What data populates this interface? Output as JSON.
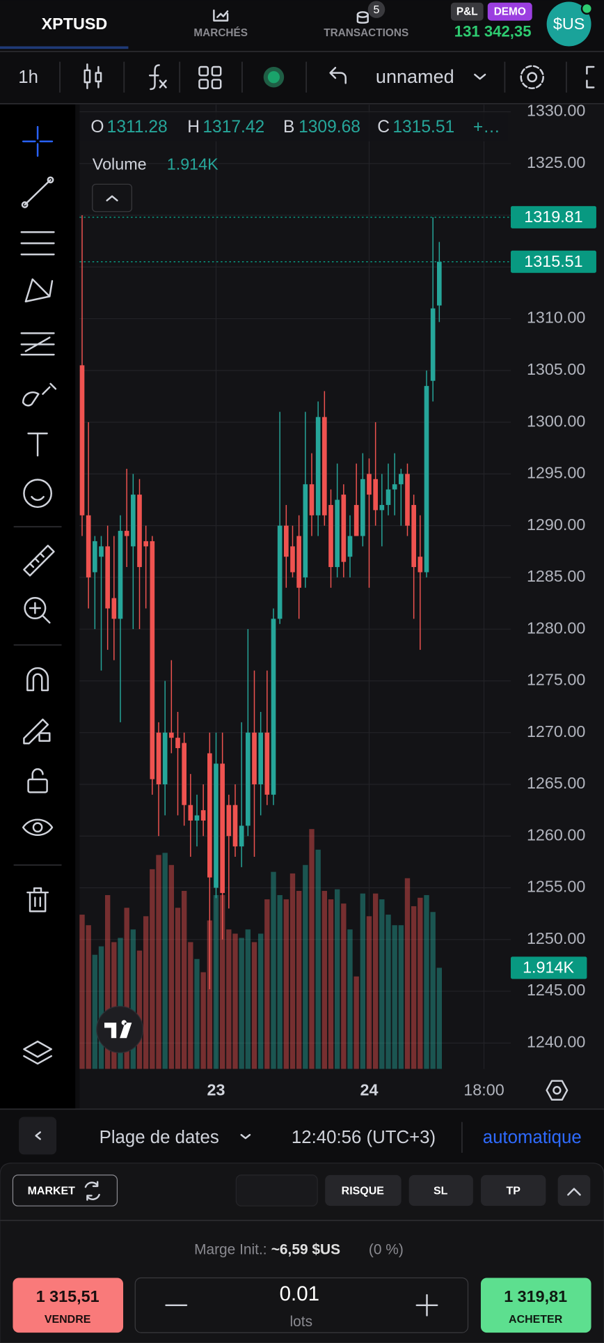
{
  "header": {
    "symbol": "XPTUSD",
    "tabs": [
      {
        "label": "MARCHÉS"
      },
      {
        "label": "TRANSACTIONS",
        "badge": "5"
      }
    ],
    "pnl_label": "P&L",
    "demo_label": "DEMO",
    "balance": "131 342,35",
    "currency": "$US"
  },
  "toolbar": {
    "interval": "1h",
    "layout": "unnamed"
  },
  "chart_data": {
    "type": "candlestick",
    "legend_labels": {
      "open": "O",
      "high": "H",
      "low": "B",
      "close": "C"
    },
    "legend_more": "+…",
    "volume_title": "Volume",
    "volume_label": "1.914K",
    "open": [
      1305.5,
      1291,
      1285.5,
      1287,
      1288,
      1283,
      1281,
      1289.5,
      1288,
      1293,
      1288.5,
      1288.5,
      1270,
      1265,
      1270,
      1269.5,
      1269,
      1263,
      1261.5,
      1262.5,
      1268,
      1255,
      1267,
      1263,
      1263,
      1259,
      1261,
      1270,
      1265,
      1270,
      1264,
      1281,
      1290,
      1288,
      1289,
      1285,
      1294,
      1291,
      1300.5,
      1292,
      1286,
      1293,
      1287,
      1292,
      1289,
      1295,
      1294.5,
      1291.5,
      1292,
      1293.5,
      1294,
      1295,
      1292,
      1287,
      1285.5,
      1304,
      1311.28
    ],
    "high": [
      1320,
      1300,
      1289,
      1289,
      1290,
      1289,
      1291,
      1295.5,
      1295,
      1294.5,
      1290,
      1289,
      1271,
      1275,
      1277,
      1272,
      1270,
      1266,
      1264,
      1265,
      1270,
      1270,
      1270,
      1264,
      1265,
      1271,
      1280,
      1276,
      1272,
      1276,
      1282,
      1301,
      1292,
      1290,
      1291,
      1301,
      1297,
      1302,
      1303,
      1293.5,
      1296,
      1294,
      1291,
      1296,
      1297,
      1296.5,
      1300,
      1295,
      1296,
      1297,
      1295.5,
      1296,
      1293,
      1291,
      1305,
      1319.81,
      1317.42
    ],
    "low": [
      1289,
      1282,
      1280,
      1276,
      1278,
      1277,
      1271,
      1286,
      1280,
      1280,
      1282,
      1264,
      1260,
      1262,
      1268,
      1262,
      1261,
      1258,
      1259,
      1260,
      1245.2,
      1254,
      1250,
      1253,
      1258,
      1257,
      1260,
      1258,
      1262,
      1263,
      1263,
      1280.5,
      1284,
      1285,
      1281,
      1284,
      1289,
      1289,
      1290,
      1284,
      1285,
      1285,
      1285,
      1289,
      1288,
      1284,
      1290,
      1288,
      1291,
      1291,
      1290,
      1289,
      1281,
      1278,
      1285,
      1302,
      1309.68
    ],
    "close": [
      1291,
      1285,
      1288.5,
      1288,
      1282,
      1281,
      1289.5,
      1289,
      1293,
      1286,
      1288,
      1265.5,
      1265,
      1270,
      1269.5,
      1268.5,
      1263,
      1261.5,
      1262,
      1261.5,
      1256,
      1267,
      1254.5,
      1260,
      1259,
      1261,
      1270,
      1265,
      1270,
      1264,
      1281,
      1290,
      1287,
      1285.5,
      1284,
      1294,
      1291,
      1300.5,
      1291,
      1286,
      1292.5,
      1286.5,
      1289,
      1289,
      1294.5,
      1293,
      1291.5,
      1292,
      1293.5,
      1294,
      1295,
      1290,
      1286,
      1285.5,
      1303.5,
      1311,
      1315.51
    ],
    "volume": [
      2920,
      2720,
      2160,
      2320,
      3290,
      2400,
      2480,
      3050,
      2640,
      2240,
      2890,
      3780,
      4050,
      4090,
      3860,
      3050,
      3370,
      2400,
      2080,
      1830,
      2810,
      3290,
      3290,
      2640,
      2560,
      2480,
      2640,
      2400,
      2560,
      3210,
      3730,
      3290,
      3210,
      3700,
      3370,
      3860,
      4540,
      4150,
      3370,
      3210,
      3400,
      3130,
      2640,
      1750,
      3320,
      2890,
      3320,
      3210,
      2920,
      2720,
      2720,
      3610,
      3080,
      3240,
      3290,
      2970,
      1914
    ],
    "ask_price": 1319.81,
    "up_color": "#26a69a",
    "down_color": "#ef5350",
    "price_line_color": "#089981",
    "ylim": [
      1237.5,
      1330.7
    ],
    "yticks": [
      {
        "value": 1330,
        "label": "1330.00"
      },
      {
        "value": 1325,
        "label": "1325.00"
      },
      {
        "value": 1320,
        "label": "1320.00"
      },
      {
        "value": 1315,
        "label": "1315.00"
      },
      {
        "value": 1310,
        "label": "1310.00"
      },
      {
        "value": 1305,
        "label": "1305.00"
      },
      {
        "value": 1300,
        "label": "1300.00"
      },
      {
        "value": 1295,
        "label": "1295.00"
      },
      {
        "value": 1290,
        "label": "1290.00"
      },
      {
        "value": 1285,
        "label": "1285.00"
      },
      {
        "value": 1280,
        "label": "1280.00"
      },
      {
        "value": 1275,
        "label": "1275.00"
      },
      {
        "value": 1270,
        "label": "1270.00"
      },
      {
        "value": 1265,
        "label": "1265.00"
      },
      {
        "value": 1260,
        "label": "1260.00"
      },
      {
        "value": 1255,
        "label": "1255.00"
      },
      {
        "value": 1250,
        "label": "1250.00"
      },
      {
        "value": 1245,
        "label": "1245.00"
      },
      {
        "value": 1240,
        "label": "1240.00"
      }
    ],
    "xlim": [
      -0.4,
      67.2
    ],
    "xticks": [
      {
        "value": 21,
        "label": "23"
      },
      {
        "value": 45,
        "label": "24"
      },
      {
        "value": 63,
        "label": "18:00"
      }
    ],
    "grid": true
  },
  "footer_bar": {
    "date_range": "Plage de dates",
    "time": "12:40:56 (UTC+3)",
    "scale": "automatique"
  },
  "order_panel": {
    "type": "MARKET",
    "buttons": [
      "RISQUE",
      "SL",
      "TP"
    ],
    "margin_label": "Marge Init.:",
    "margin_value": "~6,59 $US",
    "margin_pct": "(0 %)",
    "sell": {
      "price": "1 315,51",
      "label": "VENDRE"
    },
    "quantity": "0.01",
    "unit": "lots",
    "buy": {
      "price": "1 319,81",
      "label": "ACHETER"
    }
  }
}
